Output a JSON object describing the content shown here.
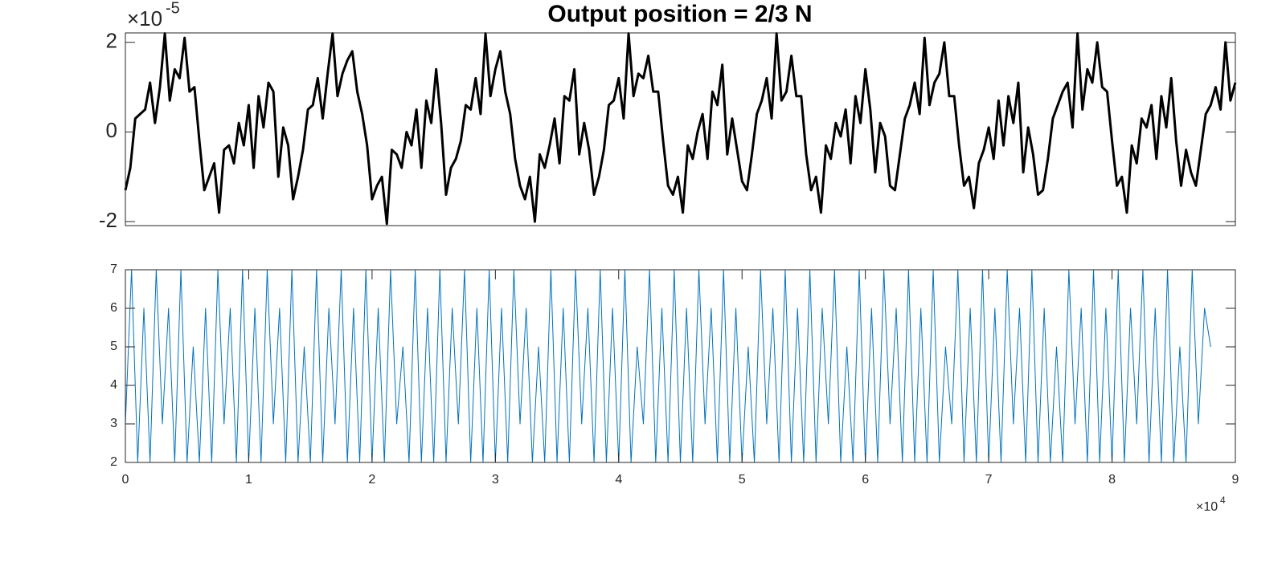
{
  "chart_data": [
    {
      "type": "line",
      "title": "Output position = 2/3 N",
      "y_multiplier": {
        "base": "×10",
        "exponent": "-5"
      },
      "ylim": [
        -2.09,
        2.21
      ],
      "yticks": [
        -2,
        0,
        2
      ],
      "series": [
        {
          "color": "#000000",
          "values": [
            -1.3,
            -0.8,
            0.3,
            0.4,
            0.5,
            1.1,
            0.2,
            1.0,
            2.2,
            0.7,
            1.4,
            1.2,
            2.1,
            0.9,
            1.0,
            -0.2,
            -1.3,
            -1.0,
            -0.7,
            -1.8,
            -0.4,
            -0.3,
            -0.7,
            0.2,
            -0.3,
            0.6,
            -0.8,
            0.8,
            0.1,
            1.1,
            0.9,
            -1.0,
            0.1,
            -0.3,
            -1.5,
            -1.0,
            -0.4,
            0.5,
            0.6,
            1.2,
            0.3,
            1.3,
            2.2,
            0.8,
            1.3,
            1.6,
            1.8,
            0.9,
            0.4,
            -0.3,
            -1.5,
            -1.2,
            -1.0,
            -2.05,
            -0.4,
            -0.5,
            -0.8,
            0.0,
            -0.3,
            0.5,
            -0.8,
            0.7,
            0.2,
            1.4,
            0.2,
            -1.4,
            -0.8,
            -0.6,
            -0.2,
            0.6,
            0.5,
            1.2,
            0.4,
            2.2,
            0.8,
            1.4,
            1.8,
            0.9,
            0.4,
            -0.6,
            -1.2,
            -1.5,
            -1.0,
            -2.0,
            -0.5,
            -0.8,
            -0.3,
            0.3,
            -0.7,
            0.8,
            0.7,
            1.4,
            -0.5,
            0.2,
            -0.4,
            -1.4,
            -1.0,
            -0.4,
            0.6,
            0.7,
            1.2,
            0.3,
            2.2,
            0.8,
            1.3,
            1.2,
            1.7,
            0.9,
            0.9,
            -0.2,
            -1.2,
            -1.4,
            -1.0,
            -1.8,
            -0.3,
            -0.6,
            0.0,
            0.4,
            -0.6,
            0.9,
            0.6,
            1.5,
            -0.5,
            0.3,
            -0.4,
            -1.1,
            -1.3,
            -0.5,
            0.4,
            0.7,
            1.2,
            0.3,
            2.2,
            0.7,
            0.9,
            1.7,
            0.8,
            0.8,
            -0.5,
            -1.3,
            -1.0,
            -1.8,
            -0.3,
            -0.6,
            0.2,
            -0.1,
            0.5,
            -0.7,
            0.8,
            0.2,
            1.4,
            0.5,
            -0.9,
            0.2,
            -0.1,
            -1.2,
            -1.3,
            -0.5,
            0.3,
            0.6,
            1.1,
            0.4,
            2.1,
            0.6,
            1.1,
            1.3,
            2.0,
            0.8,
            0.8,
            -0.3,
            -1.2,
            -1.0,
            -1.7,
            -0.7,
            -0.4,
            0.1,
            -0.6,
            0.7,
            -0.3,
            0.8,
            0.2,
            1.1,
            -0.9,
            0.1,
            -0.5,
            -1.4,
            -1.3,
            -0.6,
            0.3,
            0.6,
            0.9,
            1.1,
            0.1,
            2.2,
            0.5,
            1.4,
            1.1,
            2.0,
            1.0,
            0.9,
            -0.2,
            -1.2,
            -1.0,
            -1.8,
            -0.3,
            -0.7,
            0.3,
            0.1,
            0.6,
            -0.6,
            0.8,
            0.1,
            1.2,
            -0.2,
            -1.2,
            -0.4,
            -0.9,
            -1.2,
            -0.4,
            0.4,
            0.6,
            1.0,
            0.5,
            2.0,
            0.7,
            1.1
          ]
        }
      ]
    },
    {
      "type": "line",
      "x_multiplier": {
        "base": "×10",
        "exponent": "4"
      },
      "xlim": [
        0,
        9
      ],
      "xticks": [
        0,
        1,
        2,
        3,
        4,
        5,
        6,
        7,
        8,
        9
      ],
      "ylim": [
        2,
        7
      ],
      "yticks": [
        2,
        3,
        4,
        5,
        6,
        7
      ],
      "x": [
        0,
        0.05,
        0.1,
        0.15,
        0.2,
        0.25,
        0.3,
        0.35,
        0.4,
        0.45,
        0.5,
        0.55,
        0.6,
        0.65,
        0.7,
        0.75,
        0.8,
        0.85,
        0.9,
        0.95,
        1,
        1.05,
        1.1,
        1.15,
        1.2,
        1.25,
        1.3,
        1.35,
        1.4,
        1.45,
        1.5,
        1.55,
        1.6,
        1.65,
        1.7,
        1.75,
        1.8,
        1.85,
        1.9,
        1.95,
        2,
        2.05,
        2.1,
        2.15,
        2.2,
        2.25,
        2.3,
        2.35,
        2.4,
        2.45,
        2.5,
        2.55,
        2.6,
        2.65,
        2.7,
        2.75,
        2.8,
        2.85,
        2.9,
        2.95,
        3,
        3.05,
        3.1,
        3.15,
        3.2,
        3.25,
        3.3,
        3.35,
        3.4,
        3.45,
        3.5,
        3.55,
        3.6,
        3.65,
        3.7,
        3.75,
        3.8,
        3.85,
        3.9,
        3.95,
        4,
        4.05,
        4.1,
        4.15,
        4.2,
        4.25,
        4.3,
        4.35,
        4.4,
        4.45,
        4.5,
        4.55,
        4.6,
        4.65,
        4.7,
        4.75,
        4.8,
        4.85,
        4.9,
        4.95,
        5,
        5.05,
        5.1,
        5.15,
        5.2,
        5.25,
        5.3,
        5.35,
        5.4,
        5.45,
        5.5,
        5.55,
        5.6,
        5.65,
        5.7,
        5.75,
        5.8,
        5.85,
        5.9,
        5.95,
        6,
        6.05,
        6.1,
        6.15,
        6.2,
        6.25,
        6.3,
        6.35,
        6.4,
        6.45,
        6.5,
        6.55,
        6.6,
        6.65,
        6.7,
        6.75,
        6.8,
        6.85,
        6.9,
        6.95,
        7,
        7.05,
        7.1,
        7.15,
        7.2,
        7.25,
        7.3,
        7.35,
        7.4,
        7.45,
        7.5,
        7.55,
        7.6,
        7.65,
        7.7,
        7.75,
        7.8,
        7.85,
        7.9,
        7.95,
        8,
        8.05,
        8.1,
        8.15,
        8.2,
        8.25,
        8.3,
        8.35,
        8.4,
        8.45,
        8.5,
        8.55,
        8.6,
        8.65,
        8.7,
        8.75,
        8.8
      ],
      "series": [
        {
          "color": "#0072bd",
          "values": [
            3,
            7,
            2,
            6,
            2,
            7,
            3,
            6,
            2,
            7,
            2,
            5,
            2,
            6,
            2,
            7,
            3,
            6,
            2,
            7,
            2,
            6,
            2,
            7,
            3,
            6,
            2,
            7,
            2,
            5,
            2,
            7,
            2,
            6,
            3,
            7,
            2,
            6,
            2,
            7,
            2,
            6,
            2,
            7,
            3,
            5,
            2,
            7,
            2,
            6,
            2,
            7,
            2,
            6,
            3,
            7,
            2,
            6,
            2,
            7,
            2,
            6,
            2,
            7,
            3,
            6,
            2,
            5,
            2,
            7,
            2,
            6,
            2,
            7,
            3,
            6,
            2,
            7,
            2,
            6,
            2,
            7,
            2,
            5,
            3,
            7,
            2,
            6,
            2,
            7,
            2,
            6,
            2,
            7,
            3,
            6,
            2,
            7,
            2,
            6,
            2,
            5,
            2,
            7,
            3,
            6,
            2,
            7,
            2,
            6,
            2,
            7,
            2,
            6,
            3,
            7,
            2,
            5,
            2,
            7,
            2,
            6,
            2,
            7,
            3,
            6,
            2,
            7,
            2,
            6,
            2,
            7,
            2,
            5,
            3,
            7,
            2,
            6,
            2,
            7,
            2,
            6,
            2,
            7,
            3,
            6,
            2,
            7,
            2,
            6,
            2,
            5,
            2,
            7,
            3,
            6,
            2,
            7,
            2,
            6,
            2,
            7,
            2,
            6,
            3,
            7,
            2,
            6,
            2,
            7,
            2,
            5,
            2,
            7,
            3,
            6,
            5
          ]
        }
      ]
    }
  ]
}
